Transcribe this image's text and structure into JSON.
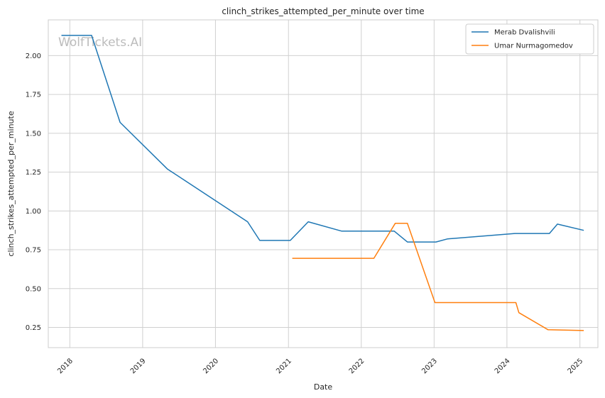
{
  "chart_data": {
    "type": "line",
    "title": "clinch_strikes_attempted_per_minute over time",
    "xlabel": "Date",
    "ylabel": "clinch_strikes_attempted_per_minute",
    "watermark": "WolfTickets.AI",
    "xlim": [
      "2017-09-15",
      "2025-04-01"
    ],
    "ylim": [
      0.12,
      2.23
    ],
    "x_ticks": [
      "2018-01-01",
      "2019-01-01",
      "2020-01-01",
      "2021-01-01",
      "2022-01-01",
      "2023-01-01",
      "2024-01-01",
      "2025-01-01"
    ],
    "x_tick_labels": [
      "2018",
      "2019",
      "2020",
      "2021",
      "2022",
      "2023",
      "2024",
      "2025"
    ],
    "y_ticks": [
      0.25,
      0.5,
      0.75,
      1.0,
      1.25,
      1.5,
      1.75,
      2.0
    ],
    "y_tick_labels": [
      "0.25",
      "0.50",
      "0.75",
      "1.00",
      "1.25",
      "1.50",
      "1.75",
      "2.00"
    ],
    "grid": true,
    "legend_position": "top-right",
    "series": [
      {
        "name": "Merab Dvalishvili",
        "color": "#1f77b4",
        "points": [
          {
            "x": "2017-11-20",
            "y": 2.13
          },
          {
            "x": "2018-04-20",
            "y": 2.13
          },
          {
            "x": "2018-09-10",
            "y": 1.57
          },
          {
            "x": "2019-05-05",
            "y": 1.27
          },
          {
            "x": "2020-06-10",
            "y": 0.93
          },
          {
            "x": "2020-08-10",
            "y": 0.81
          },
          {
            "x": "2021-01-10",
            "y": 0.81
          },
          {
            "x": "2021-04-10",
            "y": 0.93
          },
          {
            "x": "2021-09-25",
            "y": 0.87
          },
          {
            "x": "2022-06-15",
            "y": 0.87
          },
          {
            "x": "2022-08-20",
            "y": 0.8
          },
          {
            "x": "2023-01-10",
            "y": 0.8
          },
          {
            "x": "2023-03-10",
            "y": 0.82
          },
          {
            "x": "2024-02-10",
            "y": 0.855
          },
          {
            "x": "2024-08-01",
            "y": 0.855
          },
          {
            "x": "2024-09-10",
            "y": 0.915
          },
          {
            "x": "2025-01-20",
            "y": 0.875
          }
        ]
      },
      {
        "name": "Umar Nurmagomedov",
        "color": "#ff7f0e",
        "points": [
          {
            "x": "2021-01-20",
            "y": 0.695
          },
          {
            "x": "2022-03-05",
            "y": 0.695
          },
          {
            "x": "2022-06-20",
            "y": 0.92
          },
          {
            "x": "2022-08-20",
            "y": 0.92
          },
          {
            "x": "2023-01-05",
            "y": 0.41
          },
          {
            "x": "2024-02-15",
            "y": 0.41
          },
          {
            "x": "2024-03-01",
            "y": 0.345
          },
          {
            "x": "2024-07-25",
            "y": 0.235
          },
          {
            "x": "2025-01-20",
            "y": 0.23
          }
        ]
      }
    ]
  }
}
